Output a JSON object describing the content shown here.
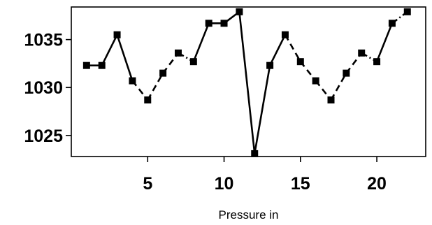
{
  "chart_data": {
    "type": "line",
    "xlabel": "Pressure in",
    "ylabel": "",
    "xlim": [
      0,
      23.2
    ],
    "ylim": [
      1022.8,
      1038.4
    ],
    "xticks": [
      5,
      10,
      15,
      20
    ],
    "yticks": [
      1025,
      1030,
      1035
    ],
    "grid": false,
    "series": [
      {
        "x": [
          1,
          2,
          3,
          4,
          5,
          6,
          7,
          8,
          9,
          10,
          11,
          12,
          13,
          14,
          15,
          16,
          17,
          18,
          19,
          20,
          21,
          22
        ],
        "values": [
          1032.3,
          1032.3,
          1035.5,
          1030.7,
          1028.7,
          1031.5,
          1033.6,
          1032.7,
          1036.7,
          1036.7,
          1037.9,
          1023.1,
          1032.3,
          1035.5,
          1032.7,
          1030.7,
          1028.7,
          1031.5,
          1033.6,
          1032.7,
          1036.7,
          1037.9
        ],
        "line_styles": [
          "solid",
          "solid",
          "solid",
          "dashed",
          "dashed",
          "dashed",
          "dashdot",
          "solid",
          "solid",
          "solid",
          "solid",
          "solid",
          "solid",
          "dashed",
          "dashed",
          "dashed",
          "dashed",
          "dashed",
          "dashdot",
          "solid",
          "dashdot"
        ],
        "color": "#000000",
        "marker": "square"
      }
    ]
  }
}
